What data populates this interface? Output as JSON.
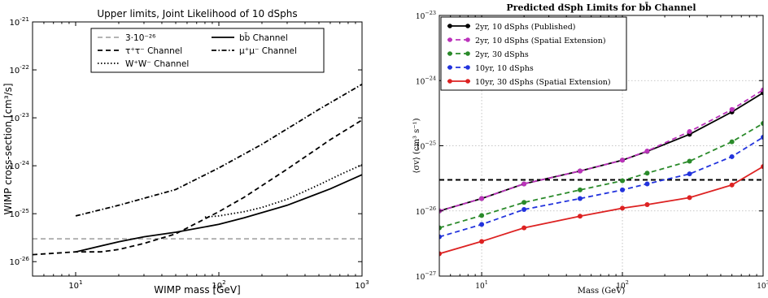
{
  "chart_data": [
    {
      "type": "line",
      "title": "Upper limits, Joint Likelihood of 10 dSphs",
      "xlabel": "WIMP mass [GeV]",
      "ylabel": "WIMP cross-section [cm³/s]",
      "x_scale": "log",
      "y_scale": "log",
      "xlim": [
        5,
        1000
      ],
      "ylim": [
        5e-27,
        1e-21
      ],
      "x_ticks": [
        {
          "value": 10,
          "base": "10",
          "exp": "1"
        },
        {
          "value": 100,
          "base": "10",
          "exp": "2"
        },
        {
          "value": 1000,
          "base": "10",
          "exp": "3"
        }
      ],
      "y_ticks": [
        {
          "value": 1e-26,
          "base": "10",
          "exp": "-26"
        },
        {
          "value": 1e-25,
          "base": "10",
          "exp": "-25"
        },
        {
          "value": 1e-24,
          "base": "10",
          "exp": "-24"
        },
        {
          "value": 1e-23,
          "base": "10",
          "exp": "-23"
        },
        {
          "value": 1e-22,
          "base": "10",
          "exp": "-22"
        },
        {
          "value": 1e-21,
          "base": "10",
          "exp": "-21"
        }
      ],
      "grid": false,
      "legend_position": "top",
      "series": [
        {
          "name": "3·10⁻²⁶",
          "color": "#aaaaaa",
          "dash": "dashed",
          "points": [
            [
              5,
              3e-26
            ],
            [
              1000,
              3e-26
            ]
          ]
        },
        {
          "name": "bb̄ Channel",
          "color": "#000000",
          "dash": "solid",
          "points": [
            [
              10,
              1.6e-26
            ],
            [
              20,
              2.6e-26
            ],
            [
              30,
              3.3e-26
            ],
            [
              50,
              4.1e-26
            ],
            [
              100,
              6e-26
            ],
            [
              150,
              8.2e-26
            ],
            [
              300,
              1.5e-25
            ],
            [
              600,
              3.3e-25
            ],
            [
              1000,
              6.5e-25
            ]
          ]
        },
        {
          "name": "τ⁺τ⁻ Channel",
          "color": "#000000",
          "dash": "dashed",
          "points": [
            [
              5,
              1.4e-26
            ],
            [
              10,
              1.6e-26
            ],
            [
              15,
              1.6e-26
            ],
            [
              20,
              1.8e-26
            ],
            [
              30,
              2.4e-26
            ],
            [
              50,
              3.8e-26
            ],
            [
              100,
              1.1e-25
            ],
            [
              150,
              2.2e-25
            ],
            [
              300,
              8.5e-25
            ],
            [
              600,
              3.5e-24
            ],
            [
              1000,
              9e-24
            ]
          ]
        },
        {
          "name": "μ⁺μ⁻ Channel",
          "color": "#000000",
          "dash": "dashdot",
          "points": [
            [
              10,
              9e-26
            ],
            [
              20,
              1.5e-25
            ],
            [
              50,
              3.2e-25
            ],
            [
              100,
              9e-25
            ],
            [
              200,
              2.8e-24
            ],
            [
              500,
              1.5e-23
            ],
            [
              1000,
              5e-23
            ]
          ]
        },
        {
          "name": "W⁺W⁻ Channel",
          "color": "#000000",
          "dash": "dotted",
          "points": [
            [
              80,
              8.5e-26
            ],
            [
              100,
              9e-26
            ],
            [
              150,
              1.1e-25
            ],
            [
              200,
              1.35e-25
            ],
            [
              300,
              2e-25
            ],
            [
              500,
              4e-25
            ],
            [
              700,
              6.5e-25
            ],
            [
              1000,
              1.05e-24
            ]
          ]
        }
      ]
    },
    {
      "type": "line",
      "title": "Predicted dSph Limits for bb̄ Channel",
      "xlabel": "Mass (GeV)",
      "ylabel": "⟨σv⟩ (cm³ s⁻¹)",
      "x_scale": "log",
      "y_scale": "log",
      "xlim": [
        5,
        1000
      ],
      "ylim": [
        1e-27,
        1e-23
      ],
      "x_ticks": [
        {
          "value": 10,
          "base": "10",
          "exp": "1"
        },
        {
          "value": 100,
          "base": "10",
          "exp": "2"
        },
        {
          "value": 1000,
          "base": "10",
          "exp": "3"
        }
      ],
      "y_ticks": [
        {
          "value": 1e-27,
          "base": "10",
          "exp": "−27"
        },
        {
          "value": 1e-26,
          "base": "10",
          "exp": "−26"
        },
        {
          "value": 1e-25,
          "base": "10",
          "exp": "−25"
        },
        {
          "value": 1e-24,
          "base": "10",
          "exp": "−24"
        },
        {
          "value": 1e-23,
          "base": "10",
          "exp": "−23"
        }
      ],
      "grid": true,
      "legend_position": "top-left",
      "reference_line": {
        "y": 3e-26,
        "color": "#000000",
        "dash": "dashed"
      },
      "series": [
        {
          "name": "2yr, 10 dSphs (Published)",
          "color": "#000000",
          "dash": "solid",
          "points": [
            [
              5,
              1e-26
            ],
            [
              10,
              1.55e-26
            ],
            [
              20,
              2.6e-26
            ],
            [
              50,
              4.1e-26
            ],
            [
              100,
              6e-26
            ],
            [
              150,
              8.2e-26
            ],
            [
              300,
              1.5e-25
            ],
            [
              600,
              3.3e-25
            ],
            [
              1000,
              6.5e-25
            ]
          ]
        },
        {
          "name": "2yr, 10 dSphs (Spatial Extension)",
          "color": "#bb33bb",
          "dash": "dashed",
          "points": [
            [
              5,
              1e-26
            ],
            [
              10,
              1.55e-26
            ],
            [
              20,
              2.6e-26
            ],
            [
              50,
              4.1e-26
            ],
            [
              100,
              6e-26
            ],
            [
              150,
              8.3e-26
            ],
            [
              300,
              1.65e-25
            ],
            [
              600,
              3.6e-25
            ],
            [
              1000,
              7.2e-25
            ]
          ]
        },
        {
          "name": "2yr, 30 dSphs",
          "color": "#2a8a2a",
          "dash": "dashed",
          "points": [
            [
              5,
              5.5e-27
            ],
            [
              10,
              8.5e-27
            ],
            [
              20,
              1.35e-26
            ],
            [
              50,
              2.1e-26
            ],
            [
              100,
              2.9e-26
            ],
            [
              150,
              3.8e-26
            ],
            [
              300,
              5.8e-26
            ],
            [
              600,
              1.15e-25
            ],
            [
              1000,
              2.2e-25
            ]
          ]
        },
        {
          "name": "10yr, 10 dSphs",
          "color": "#2233dd",
          "dash": "dashed",
          "points": [
            [
              5,
              4e-27
            ],
            [
              10,
              6.2e-27
            ],
            [
              20,
              1.05e-26
            ],
            [
              50,
              1.55e-26
            ],
            [
              100,
              2.1e-26
            ],
            [
              150,
              2.6e-26
            ],
            [
              300,
              3.7e-26
            ],
            [
              600,
              6.8e-26
            ],
            [
              1000,
              1.35e-25
            ]
          ]
        },
        {
          "name": "10yr, 30 dSphs (Spatial Extension)",
          "color": "#dd2222",
          "dash": "solid",
          "points": [
            [
              5,
              2.2e-27
            ],
            [
              10,
              3.4e-27
            ],
            [
              20,
              5.5e-27
            ],
            [
              50,
              8.3e-27
            ],
            [
              100,
              1.1e-26
            ],
            [
              150,
              1.25e-26
            ],
            [
              300,
              1.6e-26
            ],
            [
              600,
              2.5e-26
            ],
            [
              1000,
              4.8e-26
            ]
          ]
        }
      ]
    }
  ]
}
